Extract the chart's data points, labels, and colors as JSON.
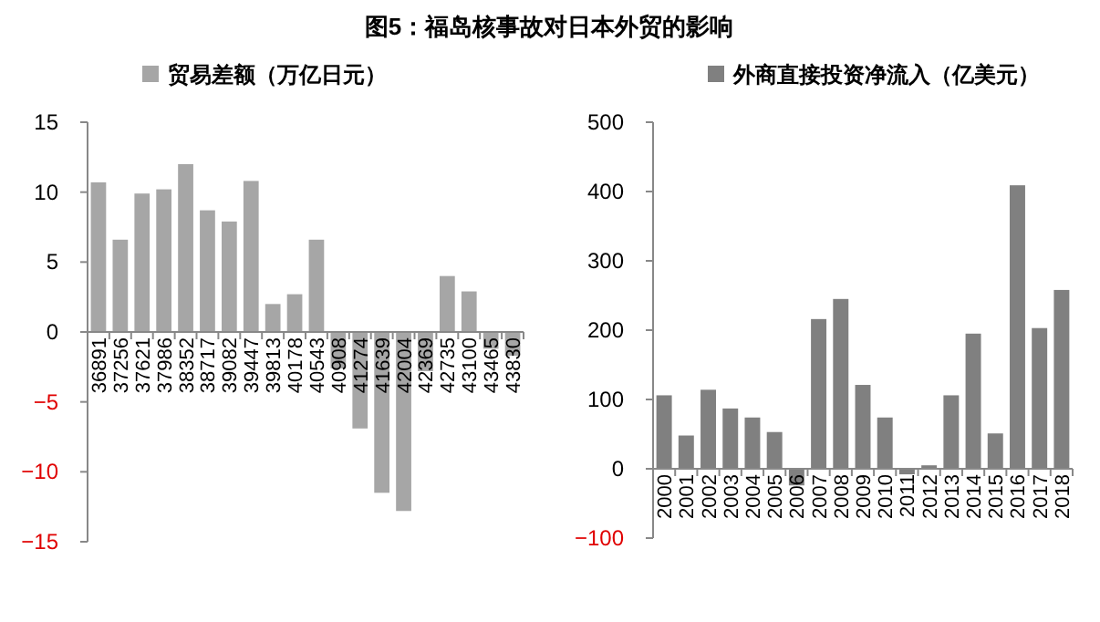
{
  "chart_data": [
    {
      "type": "bar",
      "title": "图5：福岛核事故对日本外贸的影响",
      "categories": [
        "36891",
        "37256",
        "37621",
        "37986",
        "38352",
        "38717",
        "39082",
        "39447",
        "39813",
        "40178",
        "40543",
        "40908",
        "41274",
        "41639",
        "42004",
        "42369",
        "42735",
        "43100",
        "43465",
        "43830"
      ],
      "series": [
        {
          "name": "贸易差额（万亿日元）",
          "color": "#a6a6a6",
          "values": [
            10.7,
            6.6,
            9.9,
            10.2,
            12.0,
            8.7,
            7.9,
            10.8,
            2.0,
            2.7,
            6.6,
            -2.6,
            -6.9,
            -11.5,
            -12.8,
            -2.8,
            4.0,
            2.9,
            -1.2,
            -1.7
          ]
        }
      ],
      "ylim": [
        -15,
        15
      ],
      "yticks": [
        -15,
        -10,
        -5,
        0,
        5,
        10,
        15
      ],
      "legend": "top"
    },
    {
      "type": "bar",
      "categories": [
        "2000",
        "2001",
        "2002",
        "2003",
        "2004",
        "2005",
        "2006",
        "2007",
        "2008",
        "2009",
        "2010",
        "2011",
        "2012",
        "2013",
        "2014",
        "2015",
        "2016",
        "2017",
        "2018"
      ],
      "series": [
        {
          "name": "外商直接投资净流入（亿美元）",
          "color": "#808080",
          "values": [
            106,
            48,
            114,
            87,
            74,
            53,
            -24,
            216,
            245,
            121,
            74,
            -8,
            5,
            106,
            195,
            51,
            409,
            203,
            258
          ]
        }
      ],
      "ylim": [
        -100,
        500
      ],
      "yticks": [
        -100,
        0,
        100,
        200,
        300,
        400,
        500
      ],
      "legend": "top"
    }
  ]
}
